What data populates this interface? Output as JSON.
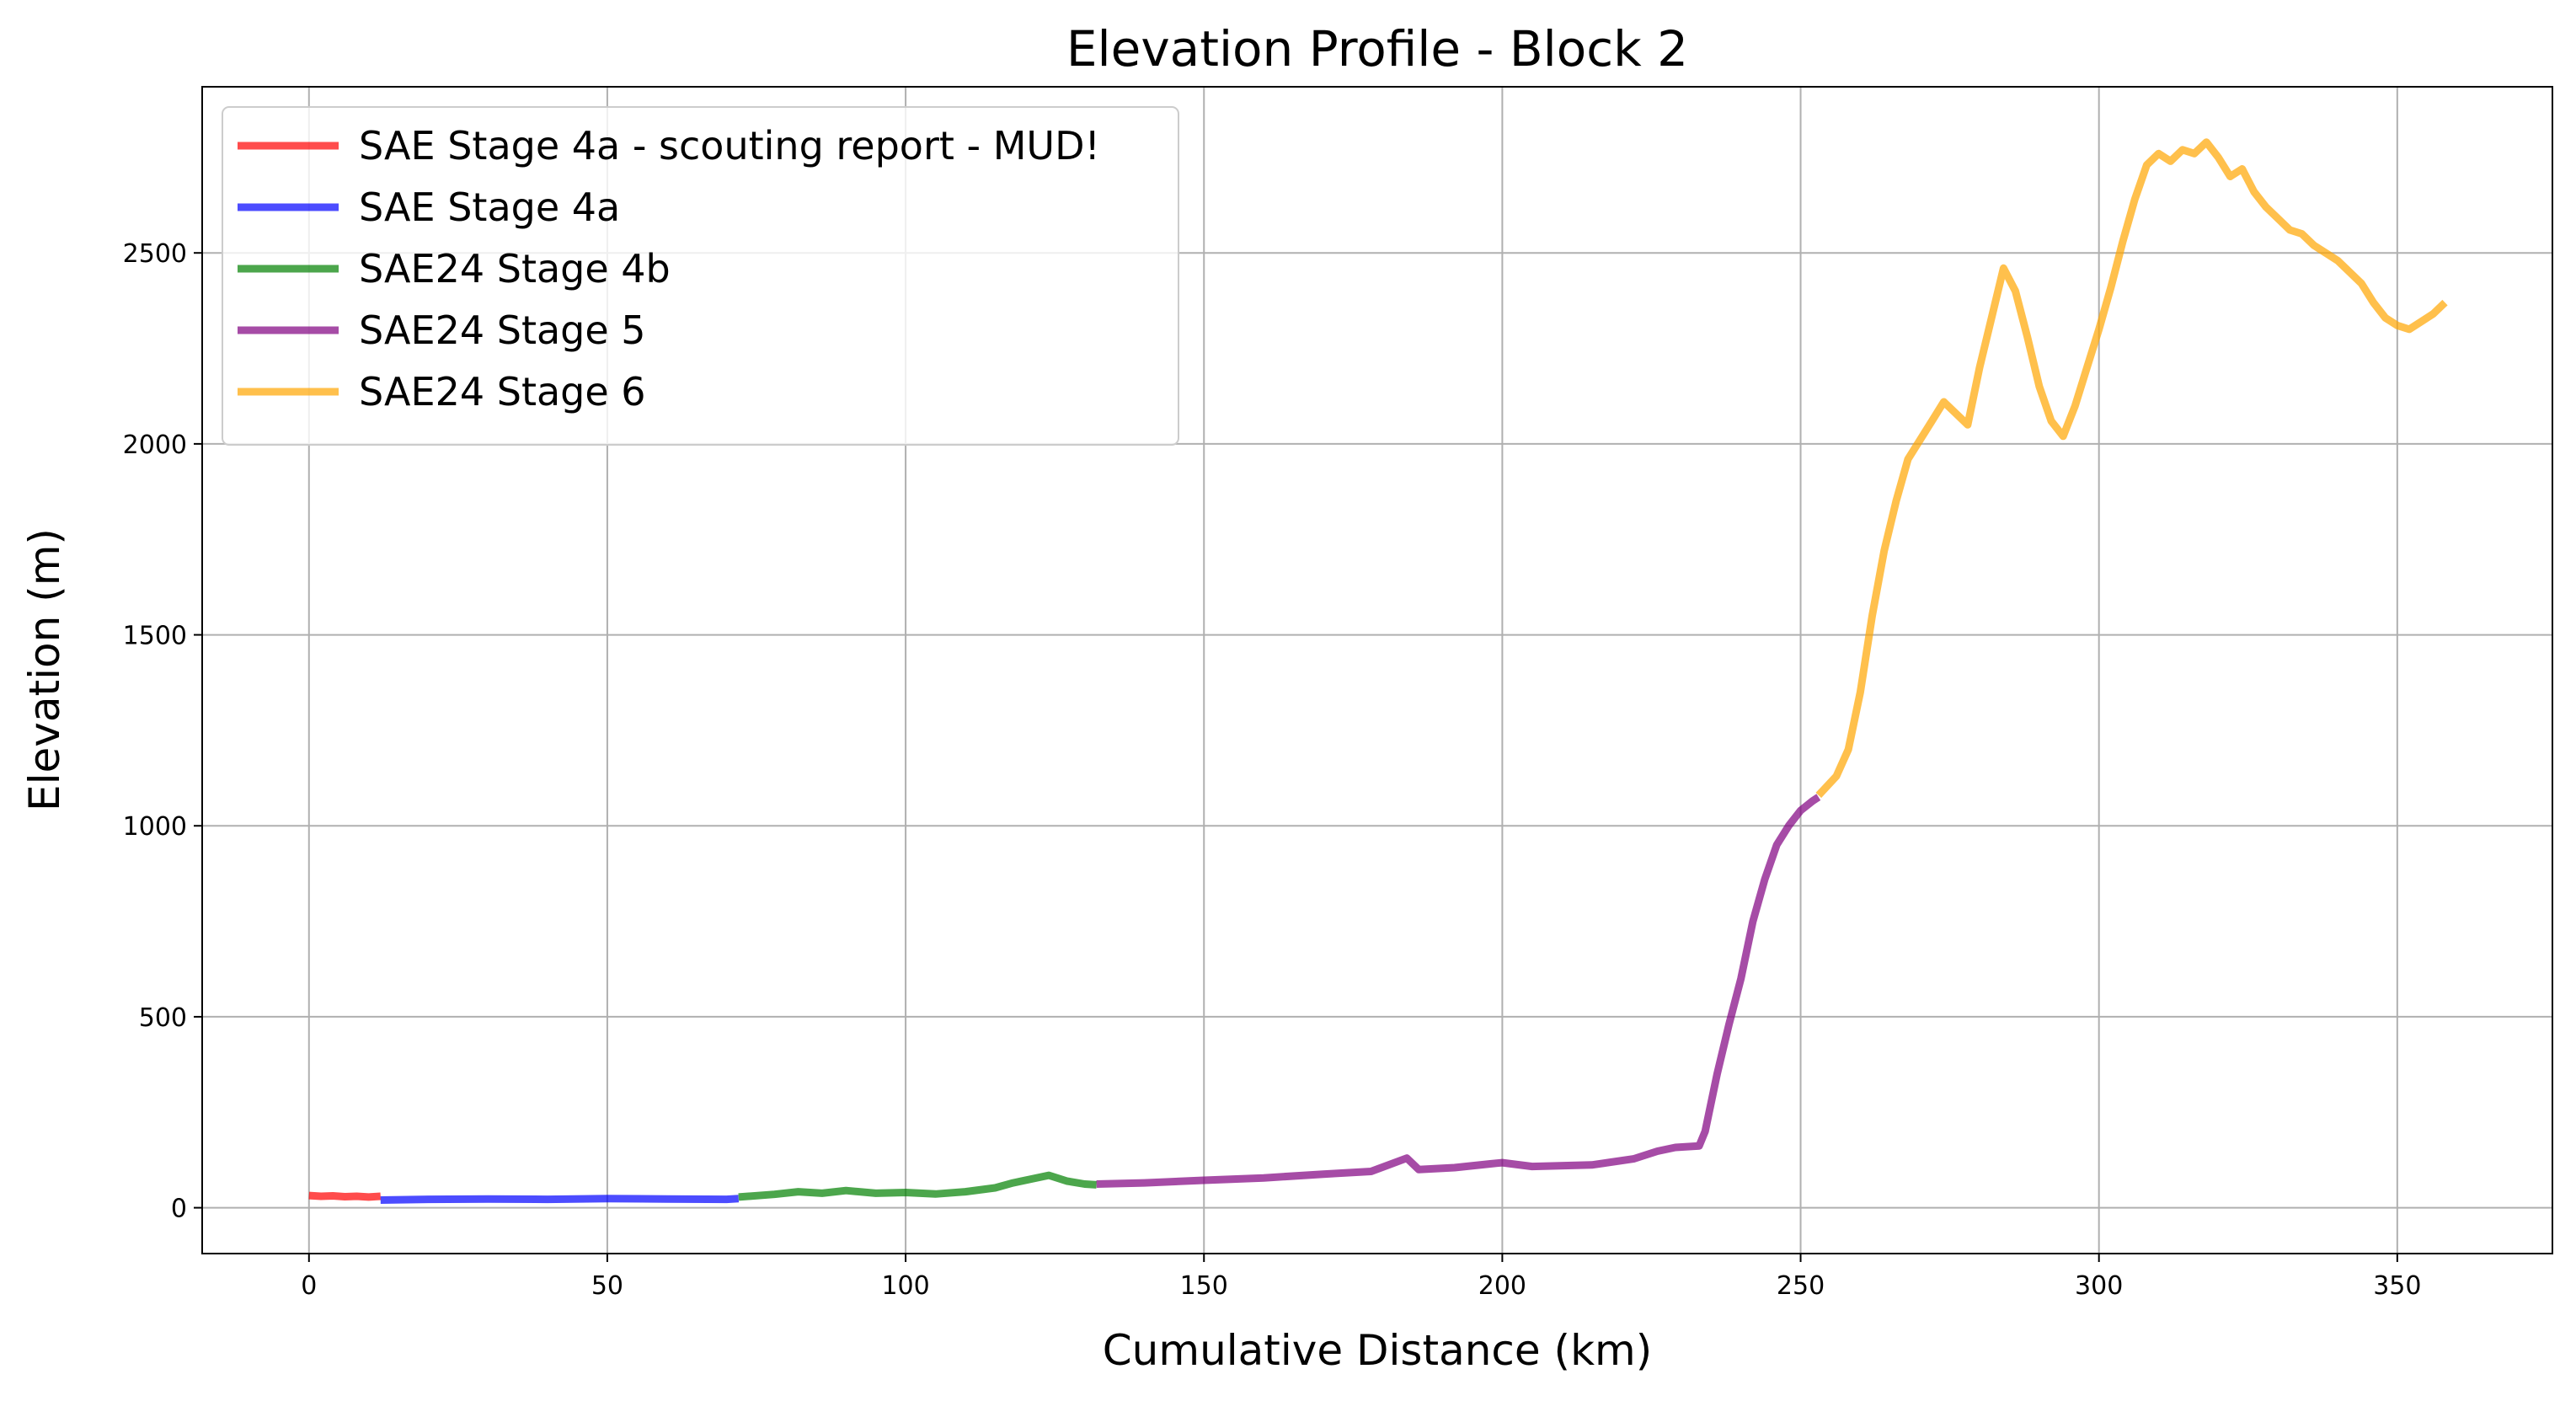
{
  "chart_data": {
    "type": "line",
    "title": "Elevation Profile - Block 2",
    "xlabel": "Cumulative Distance (km)",
    "ylabel": "Elevation (m)",
    "xlim": [
      -17.9,
      376.0
    ],
    "ylim": [
      -120,
      2935
    ],
    "xticks": [
      0,
      50,
      100,
      150,
      200,
      250,
      300,
      350
    ],
    "yticks": [
      0,
      500,
      1000,
      1500,
      2000,
      2500
    ],
    "grid": true,
    "legend_position": "top-left",
    "series": [
      {
        "name": "SAE Stage 4a - scouting report - MUD!",
        "color": "#ff0000",
        "points": [
          [
            0,
            32
          ],
          [
            2,
            30
          ],
          [
            4,
            31
          ],
          [
            6,
            29
          ],
          [
            8,
            30
          ],
          [
            10,
            28
          ],
          [
            12,
            30
          ]
        ]
      },
      {
        "name": "SAE Stage 4a",
        "color": "#0000ff",
        "points": [
          [
            12,
            20
          ],
          [
            20,
            22
          ],
          [
            30,
            23
          ],
          [
            40,
            22
          ],
          [
            50,
            24
          ],
          [
            60,
            23
          ],
          [
            70,
            22
          ],
          [
            72,
            24
          ]
        ]
      },
      {
        "name": "SAE24 Stage 4b",
        "color": "#008000",
        "points": [
          [
            72,
            28
          ],
          [
            78,
            35
          ],
          [
            82,
            42
          ],
          [
            86,
            38
          ],
          [
            90,
            45
          ],
          [
            95,
            38
          ],
          [
            100,
            40
          ],
          [
            105,
            36
          ],
          [
            110,
            42
          ],
          [
            115,
            52
          ],
          [
            118,
            65
          ],
          [
            121,
            75
          ],
          [
            124,
            85
          ],
          [
            127,
            70
          ],
          [
            130,
            62
          ],
          [
            132,
            60
          ]
        ]
      },
      {
        "name": "SAE24 Stage 5",
        "color": "#800080",
        "points": [
          [
            132,
            62
          ],
          [
            140,
            65
          ],
          [
            150,
            72
          ],
          [
            160,
            78
          ],
          [
            170,
            88
          ],
          [
            178,
            95
          ],
          [
            184,
            130
          ],
          [
            186,
            100
          ],
          [
            192,
            105
          ],
          [
            198,
            115
          ],
          [
            200,
            118
          ],
          [
            205,
            108
          ],
          [
            215,
            112
          ],
          [
            222,
            128
          ],
          [
            226,
            148
          ],
          [
            229,
            158
          ],
          [
            233,
            162
          ],
          [
            234,
            200
          ],
          [
            236,
            350
          ],
          [
            238,
            480
          ],
          [
            240,
            600
          ],
          [
            242,
            750
          ],
          [
            244,
            860
          ],
          [
            246,
            950
          ],
          [
            248,
            1000
          ],
          [
            250,
            1040
          ],
          [
            252,
            1065
          ],
          [
            253,
            1075
          ]
        ]
      },
      {
        "name": "SAE24 Stage 6",
        "color": "#ffa500",
        "points": [
          [
            253,
            1080
          ],
          [
            256,
            1130
          ],
          [
            258,
            1200
          ],
          [
            260,
            1350
          ],
          [
            262,
            1550
          ],
          [
            264,
            1720
          ],
          [
            266,
            1850
          ],
          [
            268,
            1960
          ],
          [
            270,
            2010
          ],
          [
            272,
            2060
          ],
          [
            274,
            2110
          ],
          [
            276,
            2080
          ],
          [
            278,
            2050
          ],
          [
            280,
            2200
          ],
          [
            282,
            2330
          ],
          [
            284,
            2460
          ],
          [
            286,
            2400
          ],
          [
            288,
            2280
          ],
          [
            290,
            2150
          ],
          [
            292,
            2060
          ],
          [
            294,
            2020
          ],
          [
            296,
            2100
          ],
          [
            298,
            2200
          ],
          [
            300,
            2300
          ],
          [
            302,
            2410
          ],
          [
            304,
            2530
          ],
          [
            306,
            2640
          ],
          [
            308,
            2730
          ],
          [
            310,
            2760
          ],
          [
            312,
            2740
          ],
          [
            314,
            2770
          ],
          [
            316,
            2760
          ],
          [
            318,
            2790
          ],
          [
            320,
            2750
          ],
          [
            322,
            2700
          ],
          [
            324,
            2720
          ],
          [
            326,
            2660
          ],
          [
            328,
            2620
          ],
          [
            330,
            2590
          ],
          [
            332,
            2560
          ],
          [
            334,
            2550
          ],
          [
            336,
            2520
          ],
          [
            338,
            2500
          ],
          [
            340,
            2480
          ],
          [
            342,
            2450
          ],
          [
            344,
            2420
          ],
          [
            346,
            2370
          ],
          [
            348,
            2330
          ],
          [
            350,
            2310
          ],
          [
            352,
            2300
          ],
          [
            354,
            2320
          ],
          [
            356,
            2340
          ],
          [
            358,
            2370
          ]
        ]
      }
    ]
  }
}
